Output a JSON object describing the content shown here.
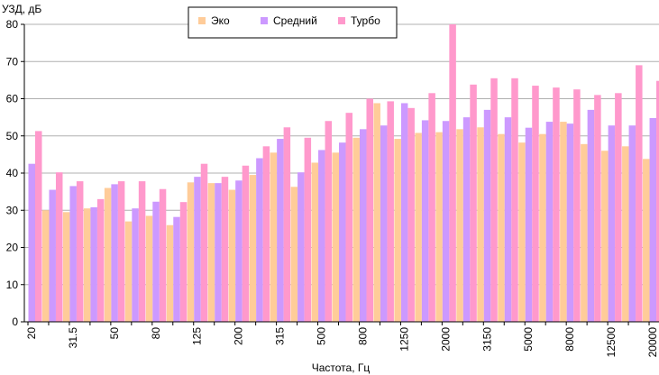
{
  "chart_data": {
    "type": "bar",
    "y_label": "УЗД, дБ",
    "x_label": "Частота, Гц",
    "categories": [
      "20",
      null,
      "31.5",
      null,
      "50",
      null,
      "80",
      null,
      "125",
      null,
      "200",
      null,
      "315",
      null,
      "500",
      null,
      "800",
      null,
      "1250",
      null,
      "2000",
      null,
      "3150",
      null,
      "5000",
      null,
      "8000",
      null,
      "12500",
      null,
      "20000"
    ],
    "series": [
      {
        "name": "Эко",
        "color": "#ffcc99",
        "values": [
          null,
          30,
          29.5,
          30.5,
          36,
          27,
          28.5,
          26,
          37.5,
          37.3,
          35.5,
          39.5,
          45.5,
          36.3,
          42.8,
          45.5,
          49.5,
          58.8,
          49.2,
          50.8,
          51,
          51.8,
          52.3,
          50.5,
          48.2,
          50.5,
          53.8,
          47.8,
          46,
          47.2,
          43.8
        ]
      },
      {
        "name": "Средний",
        "color": "#cc99ff",
        "values": [
          42.5,
          35.5,
          36.5,
          30.8,
          37,
          30.5,
          32.3,
          28.2,
          39,
          37.3,
          38,
          44,
          49.2,
          40.2,
          46.2,
          48.2,
          51.8,
          52.8,
          58.8,
          54.2,
          54,
          55,
          57,
          55,
          52.2,
          53.8,
          53.3,
          57,
          52.8,
          52.8,
          54.8
        ]
      },
      {
        "name": "Турбо",
        "color": "#ff99cc",
        "values": [
          51.3,
          40.2,
          37.8,
          33,
          37.8,
          37.8,
          35.7,
          32.2,
          42.5,
          39,
          42,
          47.2,
          52.3,
          49.5,
          54,
          56.2,
          60,
          59.3,
          57.5,
          61.5,
          80,
          63.8,
          65.5,
          65.5,
          63.5,
          63,
          62.5,
          61,
          61.5,
          69,
          64.8
        ]
      }
    ],
    "ylim": [
      0,
      80
    ],
    "yticks": [
      0,
      10,
      20,
      30,
      40,
      50,
      60,
      70,
      80
    ],
    "grid": true,
    "legend": "top"
  }
}
